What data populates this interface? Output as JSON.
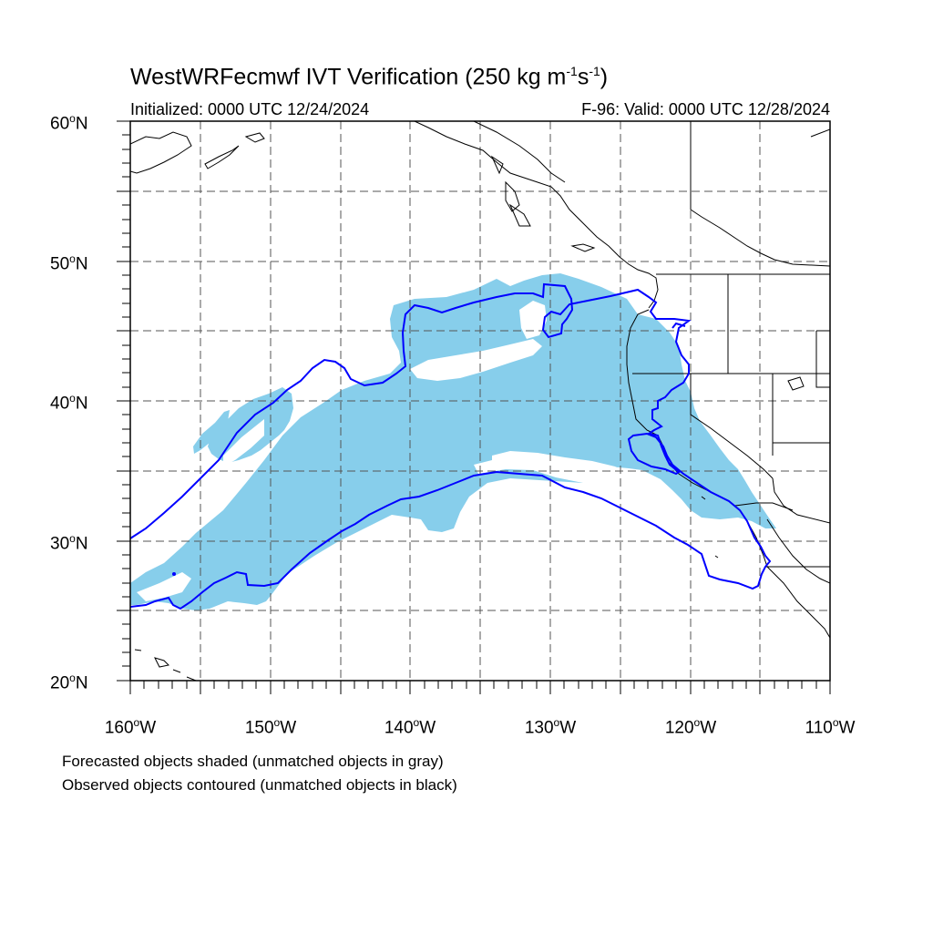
{
  "title": {
    "main": "WestWRFecmwf IVT Verification (250 kg m",
    "sup1": "-1",
    "mid": "s",
    "sup2": "-1",
    "end": ")"
  },
  "subtitle": {
    "initialized": "Initialized: 0000 UTC 12/24/2024",
    "valid": "F-96: Valid: 0000 UTC 12/28/2024"
  },
  "axes": {
    "lat_ticks": [
      {
        "deg": "60",
        "unit": "N"
      },
      {
        "deg": "50",
        "unit": "N"
      },
      {
        "deg": "40",
        "unit": "N"
      },
      {
        "deg": "30",
        "unit": "N"
      },
      {
        "deg": "20",
        "unit": "N"
      }
    ],
    "lon_ticks": [
      {
        "deg": "160",
        "unit": "W"
      },
      {
        "deg": "150",
        "unit": "W"
      },
      {
        "deg": "140",
        "unit": "W"
      },
      {
        "deg": "130",
        "unit": "W"
      },
      {
        "deg": "120",
        "unit": "W"
      },
      {
        "deg": "110",
        "unit": "W"
      }
    ],
    "lat_range": [
      20,
      60
    ],
    "lon_range": [
      -160,
      -110
    ],
    "gridlines": "dashed, every 5 degrees"
  },
  "legend_notes": {
    "line1": "Forecasted objects shaded (unmatched objects in gray)",
    "line2": "Observed objects contoured (unmatched objects in black)"
  },
  "colors": {
    "forecast_fill": "#87ceeb",
    "observed_contour": "#0000ff",
    "coastline": "#000000",
    "grid": "#555555"
  }
}
